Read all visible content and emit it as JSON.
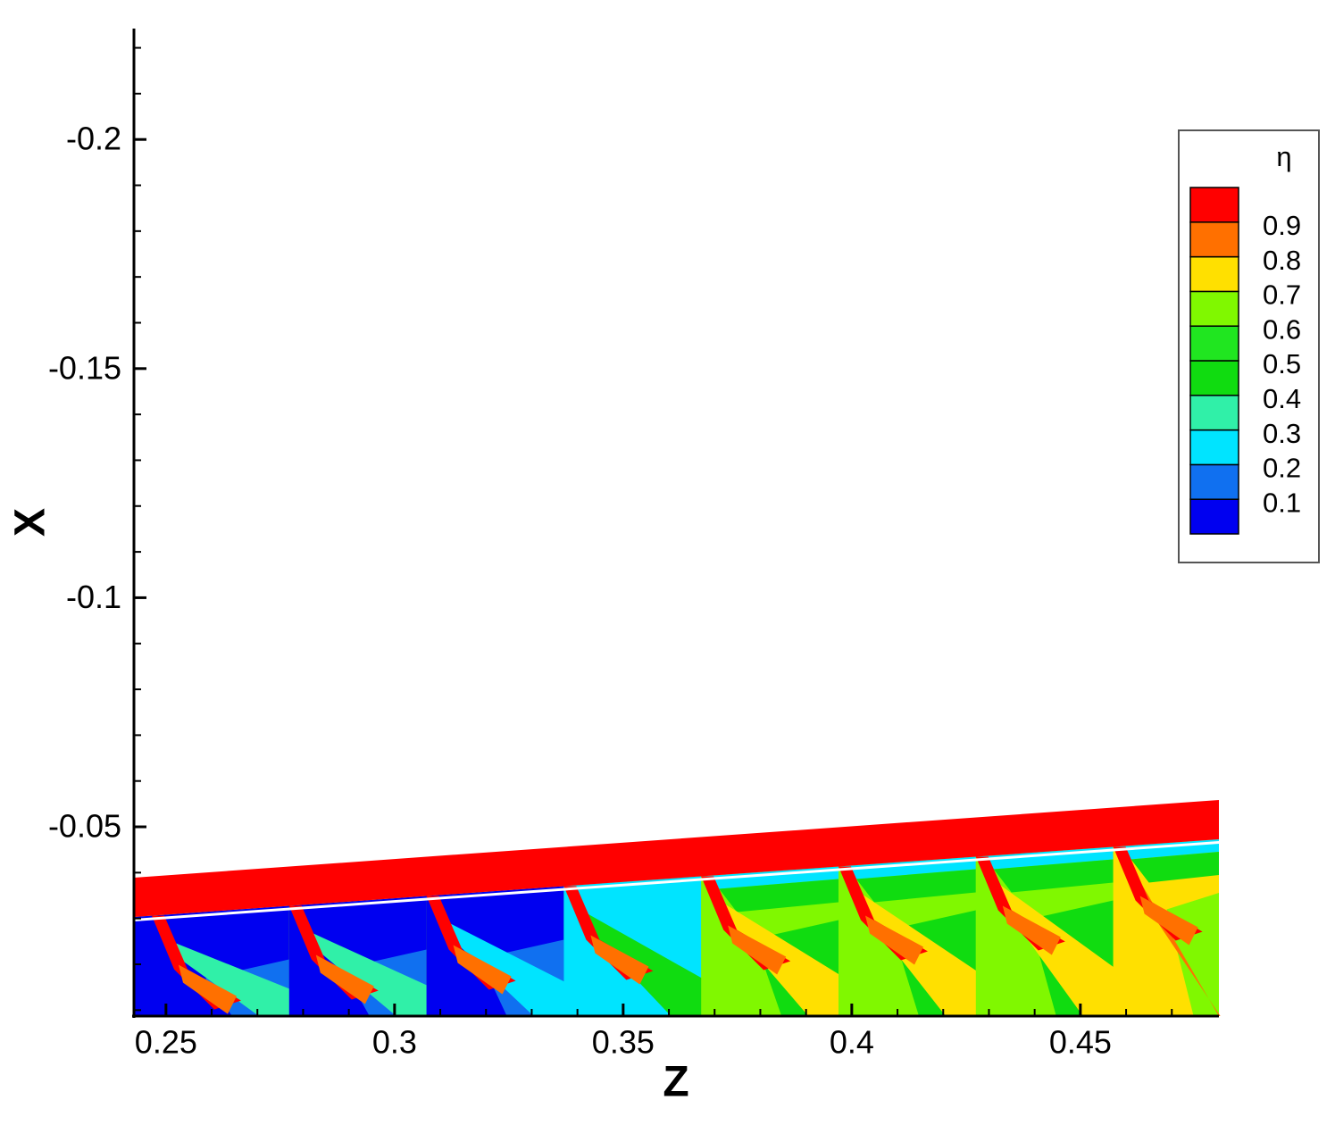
{
  "chart_data": {
    "type": "contour",
    "x_label": "Z",
    "y_label": "X",
    "xlim": [
      0.243,
      0.4803
    ],
    "xticks": [
      0.25,
      0.3,
      0.35,
      0.4,
      0.45
    ],
    "xminorticks": [
      0.26,
      0.27,
      0.28,
      0.29,
      0.31,
      0.32,
      0.33,
      0.34,
      0.36,
      0.37,
      0.38,
      0.39,
      0.41,
      0.42,
      0.43,
      0.44,
      0.46,
      0.47
    ],
    "ylim": [
      -0.0087,
      -0.2242
    ],
    "y_reversed": true,
    "yticks": [
      -0.2,
      -0.15,
      -0.1,
      -0.05
    ],
    "yminorticks": [
      -0.22,
      -0.21,
      -0.19,
      -0.18,
      -0.17,
      -0.16,
      -0.14,
      -0.13,
      -0.12,
      -0.11,
      -0.09,
      -0.08,
      -0.07,
      -0.06,
      -0.04,
      -0.03,
      -0.02,
      -0.01
    ],
    "legend": {
      "title": "η",
      "position": "upper right",
      "levels": [
        0.1,
        0.2,
        0.3,
        0.4,
        0.5,
        0.6,
        0.7,
        0.8,
        0.9
      ],
      "colors": [
        "#0000f0",
        "#1070f0",
        "#00e4ff",
        "#30f0a8",
        "#10dc10",
        "#20e620",
        "#80f800",
        "#ffe000",
        "#ff7000",
        "#ff0000"
      ]
    }
  }
}
